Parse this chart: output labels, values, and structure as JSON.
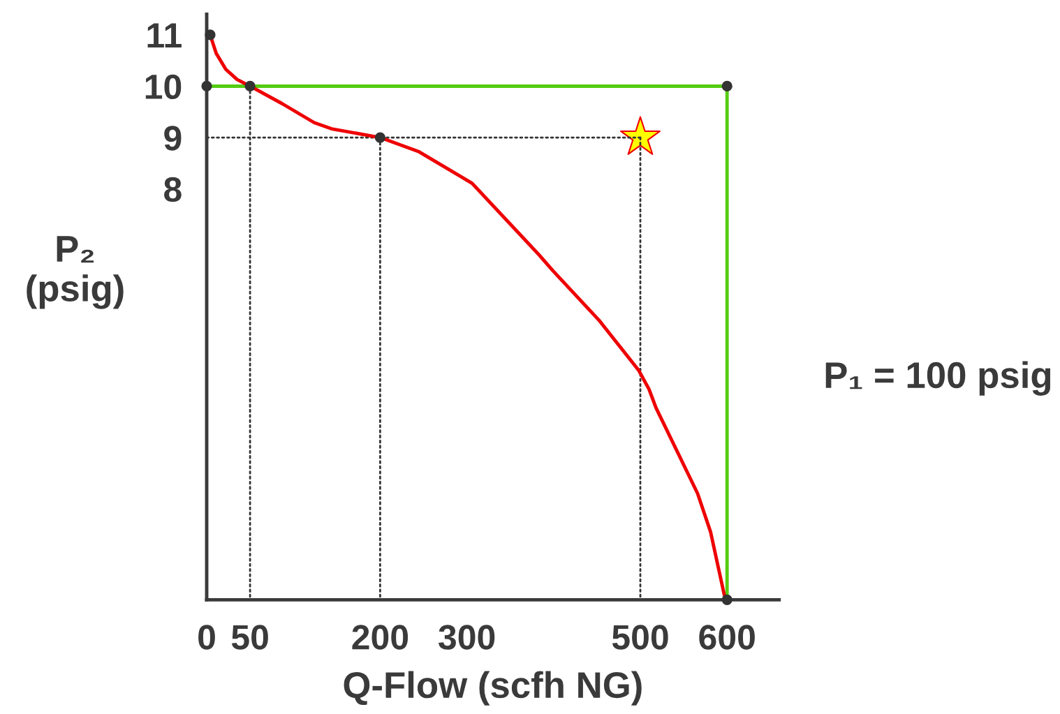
{
  "chart_data": {
    "type": "line",
    "xlabel": "Q-Flow (scfh NG)",
    "ylabel": "P₂\n(psig)",
    "annotations": [
      "P₁ = 100 psig"
    ],
    "xlim": [
      0,
      660
    ],
    "ylim": [
      0,
      11.4
    ],
    "xticks": [
      0,
      50,
      200,
      300,
      500,
      600
    ],
    "yticks": [
      8,
      9,
      10,
      11
    ],
    "grid": false,
    "series": [
      {
        "color": "#55cc11",
        "line_style": "solid",
        "marker": "none",
        "x": [
          0,
          600,
          600
        ],
        "values": [
          10,
          10,
          0
        ]
      },
      {
        "color": "#333333",
        "line_style": "dotted",
        "marker": "none",
        "x": [
          0,
          500
        ],
        "values": [
          9,
          9
        ]
      },
      {
        "color": "#333333",
        "line_style": "dotted",
        "marker": "none",
        "x": [
          50,
          50
        ],
        "values": [
          10,
          0
        ]
      },
      {
        "color": "#333333",
        "line_style": "dotted",
        "marker": "none",
        "x": [
          200,
          200
        ],
        "values": [
          9,
          0
        ]
      },
      {
        "color": "#333333",
        "line_style": "dotted",
        "marker": "none",
        "x": [
          500,
          500
        ],
        "values": [
          9,
          0
        ]
      },
      {
        "color": "#ee0000",
        "line_style": "solid",
        "marker": "none",
        "x": [
          4,
          11,
          22,
          35,
          50,
          87,
          124,
          144,
          200,
          244,
          306,
          383,
          399,
          452,
          498,
          510,
          518,
          566,
          581,
          598
        ],
        "values": [
          11,
          10.64,
          10.33,
          10.13,
          10,
          9.66,
          9.29,
          9.17,
          9,
          8.73,
          8.11,
          6.72,
          6.41,
          5.45,
          4.47,
          4.1,
          3.74,
          2.07,
          1.32,
          0
        ]
      },
      {
        "type": "scatter",
        "color": "#333333",
        "marker": "circle",
        "x": [
          4,
          0,
          50,
          200,
          600,
          600
        ],
        "values": [
          11,
          10,
          10,
          9,
          10,
          0
        ]
      },
      {
        "type": "scatter",
        "color": "#ffff00",
        "marker": "star",
        "x": [
          500
        ],
        "values": [
          9
        ]
      }
    ]
  }
}
